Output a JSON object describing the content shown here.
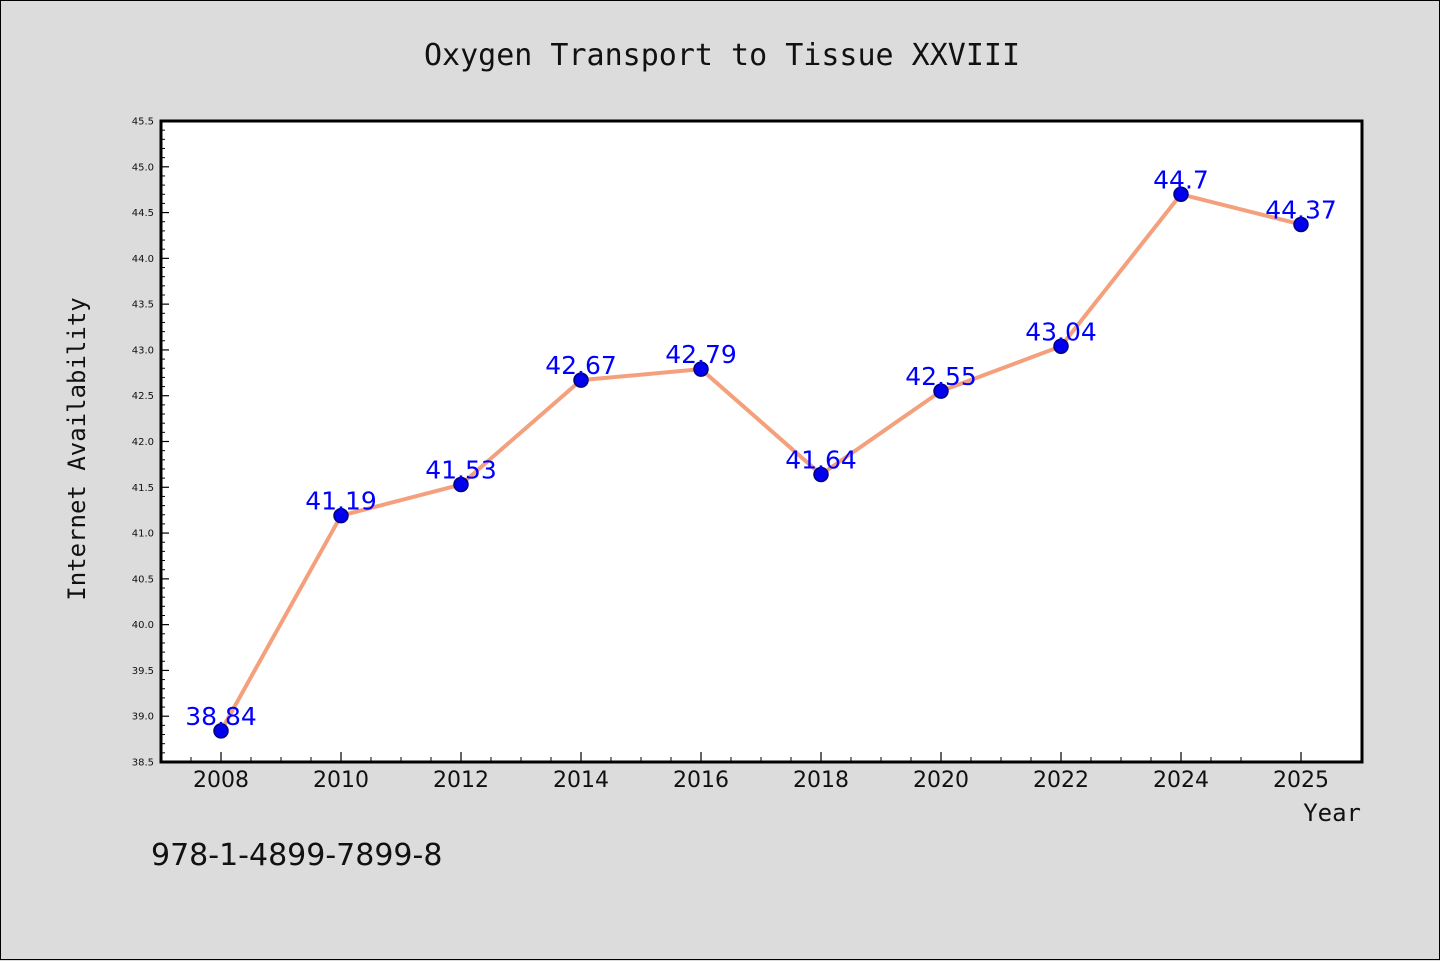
{
  "chart_data": {
    "type": "line",
    "title": "Oxygen Transport to Tissue XXVIII",
    "xlabel": "Year",
    "ylabel": "Internet Availability",
    "categories": [
      "2008",
      "2010",
      "2012",
      "2014",
      "2016",
      "2018",
      "2020",
      "2022",
      "2024",
      "2025"
    ],
    "series": [
      {
        "values": [
          38.84,
          41.19,
          41.53,
          42.67,
          42.79,
          41.64,
          42.55,
          43.04,
          44.7,
          44.37
        ],
        "labels": [
          "38.84",
          "41.19",
          "41.53",
          "42.67",
          "42.79",
          "41.64",
          "42.55",
          "43.04",
          "44.7",
          "44.37"
        ]
      }
    ],
    "ylim": [
      38.5,
      45.5
    ],
    "yticks": [
      "38.5",
      "39.0",
      "39.5",
      "40.0",
      "40.5",
      "41.0",
      "41.5",
      "42.0",
      "42.5",
      "43.0",
      "43.5",
      "44.0",
      "44.5",
      "45.0",
      "45.5"
    ],
    "grid": false,
    "colors": {
      "line": "#f4a07c",
      "marker_fill": "#0000ee",
      "marker_edge": "#00007a",
      "data_label": "#0000ff",
      "plot_background": "#ffffff",
      "figure_background": "#dcdcdc"
    },
    "footer_text": "978-1-4899-7899-8"
  }
}
